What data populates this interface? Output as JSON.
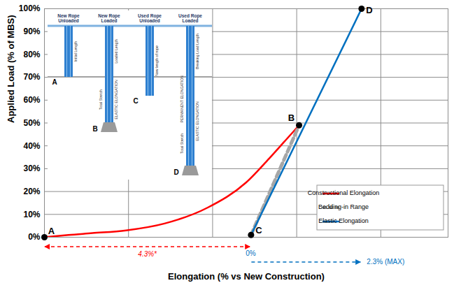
{
  "chart_data": {
    "type": "line",
    "x_label": "Elongation (% vs New Construction)",
    "y_label": "Applied Load (% of MBS)",
    "xlim": [
      0,
      8.4
    ],
    "xticks": [
      0,
      1.75,
      3.5,
      5.25,
      7
    ],
    "ylim": [
      0,
      100
    ],
    "yticks": [
      {
        "value": 0,
        "label": "0%"
      },
      {
        "value": 10,
        "label": "10%"
      },
      {
        "value": 20,
        "label": "20%"
      },
      {
        "value": 30,
        "label": "30%"
      },
      {
        "value": 40,
        "label": "40%"
      },
      {
        "value": 50,
        "label": "50%"
      },
      {
        "value": 60,
        "label": "60%"
      },
      {
        "value": 70,
        "label": "70%"
      },
      {
        "value": 80,
        "label": "80%"
      },
      {
        "value": 90,
        "label": "90%"
      },
      {
        "value": 100,
        "label": "100%"
      }
    ],
    "grid": true,
    "tick_labels": "y",
    "legend": "lower right",
    "series": [
      {
        "name": "Constructional Elongation",
        "color": "#ff0000",
        "line_style": "solid",
        "x": [
          0,
          0.5,
          1,
          1.7,
          2.5,
          3.4,
          4.2,
          4.7,
          5.0,
          5.3
        ],
        "values": [
          0,
          1,
          1.8,
          3,
          6,
          13,
          24,
          35,
          42,
          49
        ]
      },
      {
        "name": "Bedding-in Range",
        "color": "#a6a6a6",
        "line_style": "dashed",
        "x": [
          4.3,
          5.3
        ],
        "values": [
          1,
          49
        ]
      },
      {
        "name": "Elastic Elongation",
        "color": "#0070c0",
        "line_style": "solid",
        "x": [
          4.3,
          6.6
        ],
        "values": [
          1,
          100
        ]
      }
    ],
    "points": [
      {
        "label": "A",
        "x": 0,
        "y": 0
      },
      {
        "label": "B",
        "x": 5.3,
        "y": 49
      },
      {
        "label": "C",
        "x": 4.3,
        "y": 1
      },
      {
        "label": "D",
        "x": 6.6,
        "y": 100
      }
    ],
    "annotations": [
      {
        "text": "4.3%*",
        "x": [
          0,
          4.3
        ],
        "color": "#ff0000"
      },
      {
        "text": "0%",
        "x": 4.3,
        "color": "#0070c0"
      },
      {
        "text": "2.3% (MAX)",
        "x": [
          4.3,
          6.6
        ],
        "color": "#0070c0"
      }
    ],
    "inset": {
      "columns": [
        {
          "title": "New Rope Unloaded",
          "letter": "A",
          "right": [
            "Initial Length"
          ]
        },
        {
          "title": "New Rope Loaded",
          "letter": "B",
          "right": [
            "Loaded Length",
            "ELASTIC ELONGATION"
          ],
          "left": [
            "Total Stretch"
          ]
        },
        {
          "title": "Used Rope Unloaded",
          "letter": "C",
          "right": [
            "New length of rope"
          ]
        },
        {
          "title": "Used Rope Loaded",
          "letter": "D",
          "right": [
            "Breaking Load Length",
            "ELASTIC ELONGATION"
          ],
          "left": [
            "PERMANENT ELONGATION",
            "Total Stretch"
          ]
        }
      ]
    }
  }
}
